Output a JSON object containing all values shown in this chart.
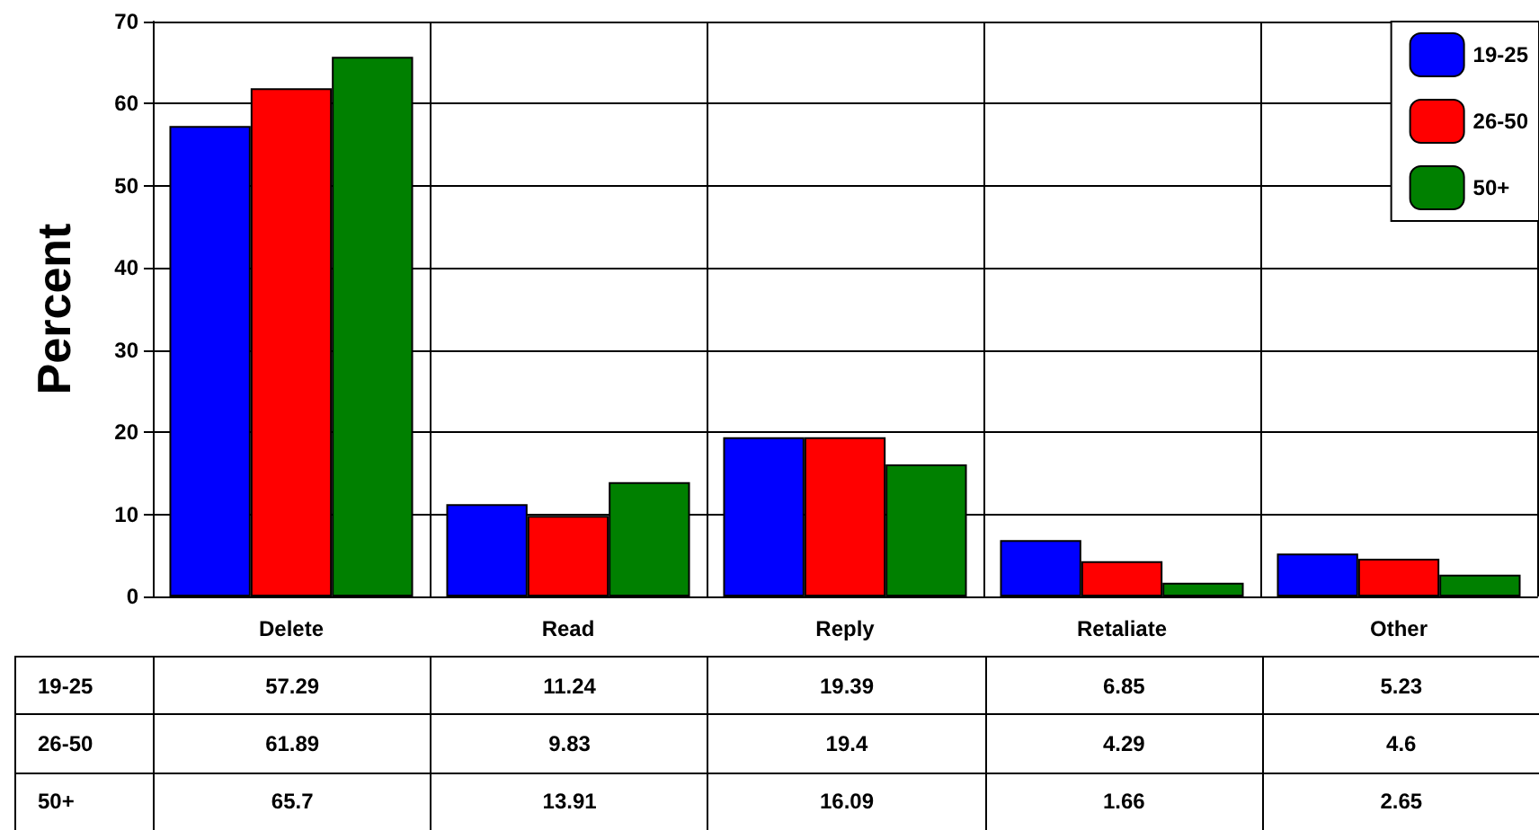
{
  "chart_data": {
    "type": "bar",
    "ylabel": "Percent",
    "categories": [
      "Delete",
      "Read",
      "Reply",
      "Retaliate",
      "Other"
    ],
    "series": [
      {
        "name": "19-25",
        "color": "#0000ff",
        "values": [
          57.29,
          11.24,
          19.39,
          6.85,
          5.23
        ]
      },
      {
        "name": "26-50",
        "color": "#ff0000",
        "values": [
          61.89,
          9.83,
          19.4,
          4.29,
          4.6
        ]
      },
      {
        "name": "50+",
        "color": "#008000",
        "values": [
          65.7,
          13.91,
          16.09,
          1.66,
          2.65
        ]
      }
    ],
    "ylim": [
      0,
      70
    ],
    "yticks": [
      0,
      10,
      20,
      30,
      40,
      50,
      60,
      70
    ],
    "grid": true,
    "legend": "top right",
    "data_labels": true
  }
}
